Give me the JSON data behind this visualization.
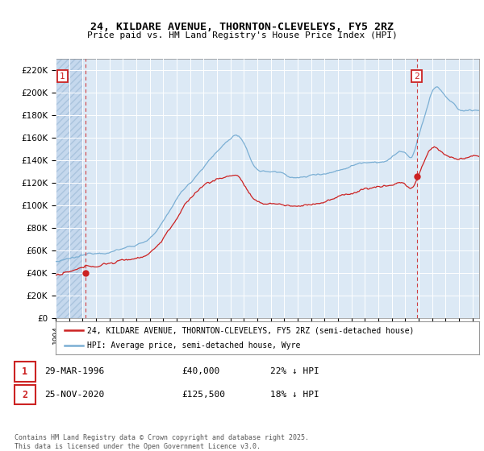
{
  "title_line1": "24, KILDARE AVENUE, THORNTON-CLEVELEYS, FY5 2RZ",
  "title_line2": "Price paid vs. HM Land Registry's House Price Index (HPI)",
  "xlim_start": 1994.0,
  "xlim_end": 2025.5,
  "ylim_min": 0,
  "ylim_max": 230000,
  "yticks": [
    0,
    20000,
    40000,
    60000,
    80000,
    100000,
    120000,
    140000,
    160000,
    180000,
    200000,
    220000
  ],
  "ytick_labels": [
    "£0",
    "£20K",
    "£40K",
    "£60K",
    "£80K",
    "£100K",
    "£120K",
    "£140K",
    "£160K",
    "£180K",
    "£200K",
    "£220K"
  ],
  "hpi_color": "#7bafd4",
  "price_color": "#cc2222",
  "marker1_x": 1996.24,
  "marker1_y": 40000,
  "marker2_x": 2020.9,
  "marker2_y": 125500,
  "vline1_x": 1996.24,
  "vline2_x": 2020.9,
  "legend_label1": "24, KILDARE AVENUE, THORNTON-CLEVELEYS, FY5 2RZ (semi-detached house)",
  "legend_label2": "HPI: Average price, semi-detached house, Wyre",
  "footnote": "Contains HM Land Registry data © Crown copyright and database right 2025.\nThis data is licensed under the Open Government Licence v3.0.",
  "plot_bg_color": "#dce9f5",
  "grid_color": "#ffffff",
  "hatch_color": "#c5d8ed"
}
